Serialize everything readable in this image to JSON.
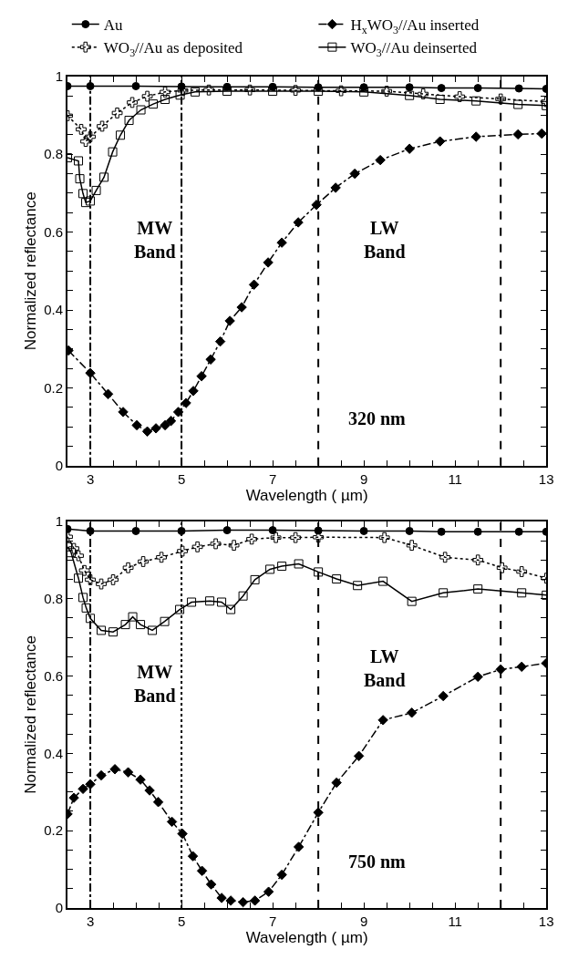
{
  "chart_data": [
    {
      "type": "line",
      "xlabel": "Wavelength ( µm)",
      "ylabel": "Normalized reflectance",
      "xlim": [
        2.5,
        13
      ],
      "ylim": [
        0,
        1
      ],
      "legend": "top",
      "xticks": [
        {
          "value": 2.5,
          "label": null
        },
        3,
        {
          "value": 3.5,
          "label": null
        },
        {
          "value": 4,
          "label": null
        },
        {
          "value": 4.5,
          "label": null
        },
        5,
        {
          "value": 5.5,
          "label": null
        },
        {
          "value": 6,
          "label": null
        },
        {
          "value": 6.5,
          "label": null
        },
        7,
        {
          "value": 7.5,
          "label": null
        },
        {
          "value": 8,
          "label": null
        },
        {
          "value": 8.5,
          "label": null
        },
        9,
        {
          "value": 9.5,
          "label": null
        },
        {
          "value": 10,
          "label": null
        },
        {
          "value": 10.5,
          "label": null
        },
        11,
        {
          "value": 11.5,
          "label": null
        },
        {
          "value": 12,
          "label": null
        },
        {
          "value": 12.5,
          "label": null
        },
        13
      ],
      "yticks": [
        0,
        {
          "value": 0.05,
          "label": null
        },
        {
          "value": 0.1,
          "label": null
        },
        {
          "value": 0.15,
          "label": null
        },
        0.2,
        {
          "value": 0.25,
          "label": null
        },
        {
          "value": 0.3,
          "label": null
        },
        {
          "value": 0.35,
          "label": null
        },
        0.4,
        {
          "value": 0.45,
          "label": null
        },
        {
          "value": 0.5,
          "label": null
        },
        {
          "value": 0.55,
          "label": null
        },
        0.6,
        {
          "value": 0.65,
          "label": null
        },
        {
          "value": 0.7,
          "label": null
        },
        {
          "value": 0.75,
          "label": null
        },
        0.8,
        {
          "value": 0.85,
          "label": null
        },
        {
          "value": 0.9,
          "label": null
        },
        {
          "value": 0.95,
          "label": null
        },
        1
      ],
      "series": [
        {
          "name": "Au",
          "color": "#000000",
          "marker": "circle",
          "line_style": "solid",
          "x": [
            2.5,
            3,
            4,
            5,
            6,
            7,
            8,
            9,
            10,
            10.7,
            11.5,
            12.4,
            13
          ],
          "values": [
            0.975,
            0.975,
            0.975,
            0.974,
            0.973,
            0.973,
            0.972,
            0.972,
            0.972,
            0.97,
            0.97,
            0.969,
            0.968
          ]
        },
        {
          "name": "H$_{x}$WO$_{3}$//Au inserted",
          "color": "#000000",
          "marker": "diamond",
          "line_style": "dashdot",
          "x": [
            2.52,
            3,
            3.39,
            3.72,
            4.02,
            4.25,
            4.44,
            4.64,
            4.77,
            4.93,
            5.1,
            5.26,
            5.44,
            5.64,
            5.85,
            6.06,
            6.32,
            6.59,
            6.9,
            7.2,
            7.56,
            7.96,
            8.38,
            8.8,
            9.36,
            10,
            10.67,
            11.46,
            12.38,
            12.9
          ],
          "values": [
            0.296,
            0.238,
            0.184,
            0.138,
            0.104,
            0.088,
            0.096,
            0.104,
            0.115,
            0.138,
            0.161,
            0.192,
            0.23,
            0.273,
            0.319,
            0.372,
            0.407,
            0.465,
            0.522,
            0.573,
            0.625,
            0.67,
            0.714,
            0.75,
            0.785,
            0.814,
            0.833,
            0.845,
            0.851,
            0.853
          ]
        },
        {
          "name": "WO$_{3}$//Au as deposited",
          "color": "#000000",
          "marker": "cross",
          "line_style": "dotted",
          "x": [
            2.5,
            2.8,
            2.9,
            3,
            3.26,
            3.59,
            3.92,
            4.25,
            4.64,
            5.03,
            5.6,
            6.5,
            7.5,
            8.5,
            9.5,
            10.3,
            11.1,
            12,
            13
          ],
          "values": [
            0.899,
            0.864,
            0.833,
            0.845,
            0.872,
            0.906,
            0.933,
            0.949,
            0.96,
            0.964,
            0.965,
            0.965,
            0.964,
            0.963,
            0.962,
            0.955,
            0.948,
            0.942,
            0.935
          ]
        },
        {
          "name": "WO$_{3}$//Au deinserted",
          "color": "#000000",
          "marker": "square",
          "line_style": "solid",
          "x": [
            2.5,
            2.74,
            2.77,
            2.84,
            2.9,
            3,
            3.13,
            3.3,
            3.49,
            3.66,
            3.85,
            4.11,
            4.38,
            4.64,
            4.97,
            5.3,
            6,
            7,
            8,
            9,
            10,
            10.67,
            11.46,
            12.38,
            13
          ],
          "values": [
            0.791,
            0.783,
            0.737,
            0.699,
            0.676,
            0.68,
            0.707,
            0.741,
            0.806,
            0.849,
            0.887,
            0.914,
            0.929,
            0.941,
            0.952,
            0.96,
            0.962,
            0.962,
            0.962,
            0.96,
            0.951,
            0.941,
            0.937,
            0.928,
            0.925
          ]
        }
      ],
      "ref_lines": [
        {
          "axis": "x",
          "value": 3,
          "line_style": "dashdot"
        },
        {
          "axis": "x",
          "value": 5,
          "line_style": "dashdot"
        },
        {
          "axis": "x",
          "value": 8,
          "line_style": "dashed"
        },
        {
          "axis": "x",
          "value": 12,
          "line_style": "dashed"
        }
      ],
      "annotations": [
        "MW\nBand",
        "LW\nBand",
        "320 nm"
      ]
    },
    {
      "type": "line",
      "xlabel": "Wavelength ( µm)",
      "ylabel": "Normalized reflectance",
      "xlim": [
        2.5,
        13
      ],
      "ylim": [
        0,
        1
      ],
      "xticks": [
        {
          "value": 2.5,
          "label": null
        },
        3,
        {
          "value": 3.5,
          "label": null
        },
        {
          "value": 4,
          "label": null
        },
        {
          "value": 4.5,
          "label": null
        },
        5,
        {
          "value": 5.5,
          "label": null
        },
        {
          "value": 6,
          "label": null
        },
        {
          "value": 6.5,
          "label": null
        },
        7,
        {
          "value": 7.5,
          "label": null
        },
        {
          "value": 8,
          "label": null
        },
        {
          "value": 8.5,
          "label": null
        },
        9,
        {
          "value": 9.5,
          "label": null
        },
        {
          "value": 10,
          "label": null
        },
        {
          "value": 10.5,
          "label": null
        },
        11,
        {
          "value": 11.5,
          "label": null
        },
        {
          "value": 12,
          "label": null
        },
        {
          "value": 12.5,
          "label": null
        },
        13
      ],
      "yticks": [
        0,
        {
          "value": 0.05,
          "label": null
        },
        {
          "value": 0.1,
          "label": null
        },
        {
          "value": 0.15,
          "label": null
        },
        0.2,
        {
          "value": 0.25,
          "label": null
        },
        {
          "value": 0.3,
          "label": null
        },
        {
          "value": 0.35,
          "label": null
        },
        0.4,
        {
          "value": 0.45,
          "label": null
        },
        {
          "value": 0.5,
          "label": null
        },
        {
          "value": 0.55,
          "label": null
        },
        0.6,
        {
          "value": 0.65,
          "label": null
        },
        {
          "value": 0.7,
          "label": null
        },
        {
          "value": 0.75,
          "label": null
        },
        0.8,
        {
          "value": 0.85,
          "label": null
        },
        {
          "value": 0.9,
          "label": null
        },
        {
          "value": 0.95,
          "label": null
        },
        1
      ],
      "series": [
        {
          "color": "#000000",
          "marker": "circle",
          "line_style": "solid",
          "x": [
            2.5,
            3,
            4,
            5,
            6,
            7,
            8,
            9,
            10,
            10.7,
            11.5,
            12.4,
            13
          ],
          "values": [
            0.98,
            0.975,
            0.975,
            0.975,
            0.977,
            0.977,
            0.976,
            0.975,
            0.975,
            0.973,
            0.973,
            0.973,
            0.973
          ]
        },
        {
          "color": "#000000",
          "marker": "diamond",
          "line_style": "dashdot",
          "x": [
            2.5,
            2.64,
            2.84,
            3,
            3.24,
            3.54,
            3.83,
            4.1,
            4.3,
            4.49,
            4.79,
            5.02,
            5.25,
            5.45,
            5.65,
            5.88,
            6.08,
            6.35,
            6.61,
            6.91,
            7.2,
            7.57,
            8,
            8.4,
            8.89,
            9.42,
            10.05,
            10.74,
            11.5,
            12,
            12.46,
            13.0
          ],
          "values": [
            0.243,
            0.285,
            0.308,
            0.32,
            0.343,
            0.359,
            0.351,
            0.332,
            0.304,
            0.274,
            0.223,
            0.192,
            0.134,
            0.096,
            0.061,
            0.026,
            0.019,
            0.015,
            0.019,
            0.042,
            0.086,
            0.158,
            0.247,
            0.324,
            0.393,
            0.486,
            0.505,
            0.548,
            0.598,
            0.617,
            0.624,
            0.633
          ]
        },
        {
          "color": "#000000",
          "marker": "cross",
          "line_style": "dotted",
          "x": [
            2.5,
            2.64,
            2.74,
            2.87,
            3,
            3.24,
            3.5,
            3.83,
            4.16,
            4.56,
            5.02,
            5.35,
            5.75,
            6.15,
            6.54,
            7.07,
            7.5,
            8,
            9.45,
            10.05,
            10.78,
            11.5,
            12.03,
            12.46,
            13.0
          ],
          "values": [
            0.96,
            0.93,
            0.911,
            0.873,
            0.849,
            0.838,
            0.849,
            0.88,
            0.896,
            0.907,
            0.923,
            0.934,
            0.942,
            0.938,
            0.954,
            0.958,
            0.958,
            0.959,
            0.958,
            0.938,
            0.907,
            0.9,
            0.88,
            0.87,
            0.853
          ]
        },
        {
          "color": "#000000",
          "marker": "square",
          "line_style": "solid",
          "x": [
            2.5,
            2.58,
            2.74,
            2.84,
            2.91,
            3,
            3.24,
            3.5,
            3.77,
            3.93,
            4.1,
            4.36,
            4.63,
            4.96,
            5.22,
            5.62,
            5.88,
            6.08,
            6.35,
            6.61,
            6.94,
            7.2,
            7.57,
            8,
            8.4,
            8.86,
            9.42,
            10.05,
            10.74,
            11.5,
            12.46,
            13.0
          ],
          "values": [
            0.934,
            0.919,
            0.853,
            0.803,
            0.776,
            0.749,
            0.718,
            0.714,
            0.733,
            0.753,
            0.733,
            0.718,
            0.741,
            0.772,
            0.791,
            0.794,
            0.791,
            0.772,
            0.807,
            0.849,
            0.876,
            0.884,
            0.89,
            0.869,
            0.851,
            0.834,
            0.845,
            0.793,
            0.815,
            0.825,
            0.815,
            0.809
          ]
        }
      ],
      "ref_lines": [
        {
          "axis": "x",
          "value": 3,
          "line_style": "dashdot"
        },
        {
          "axis": "x",
          "value": 5,
          "line_style": "dotted"
        },
        {
          "axis": "x",
          "value": 8,
          "line_style": "dashed"
        },
        {
          "axis": "x",
          "value": 12,
          "line_style": "dashed"
        }
      ],
      "annotations": [
        "MW\nBand",
        "LW\nBand",
        "750 nm"
      ]
    }
  ]
}
